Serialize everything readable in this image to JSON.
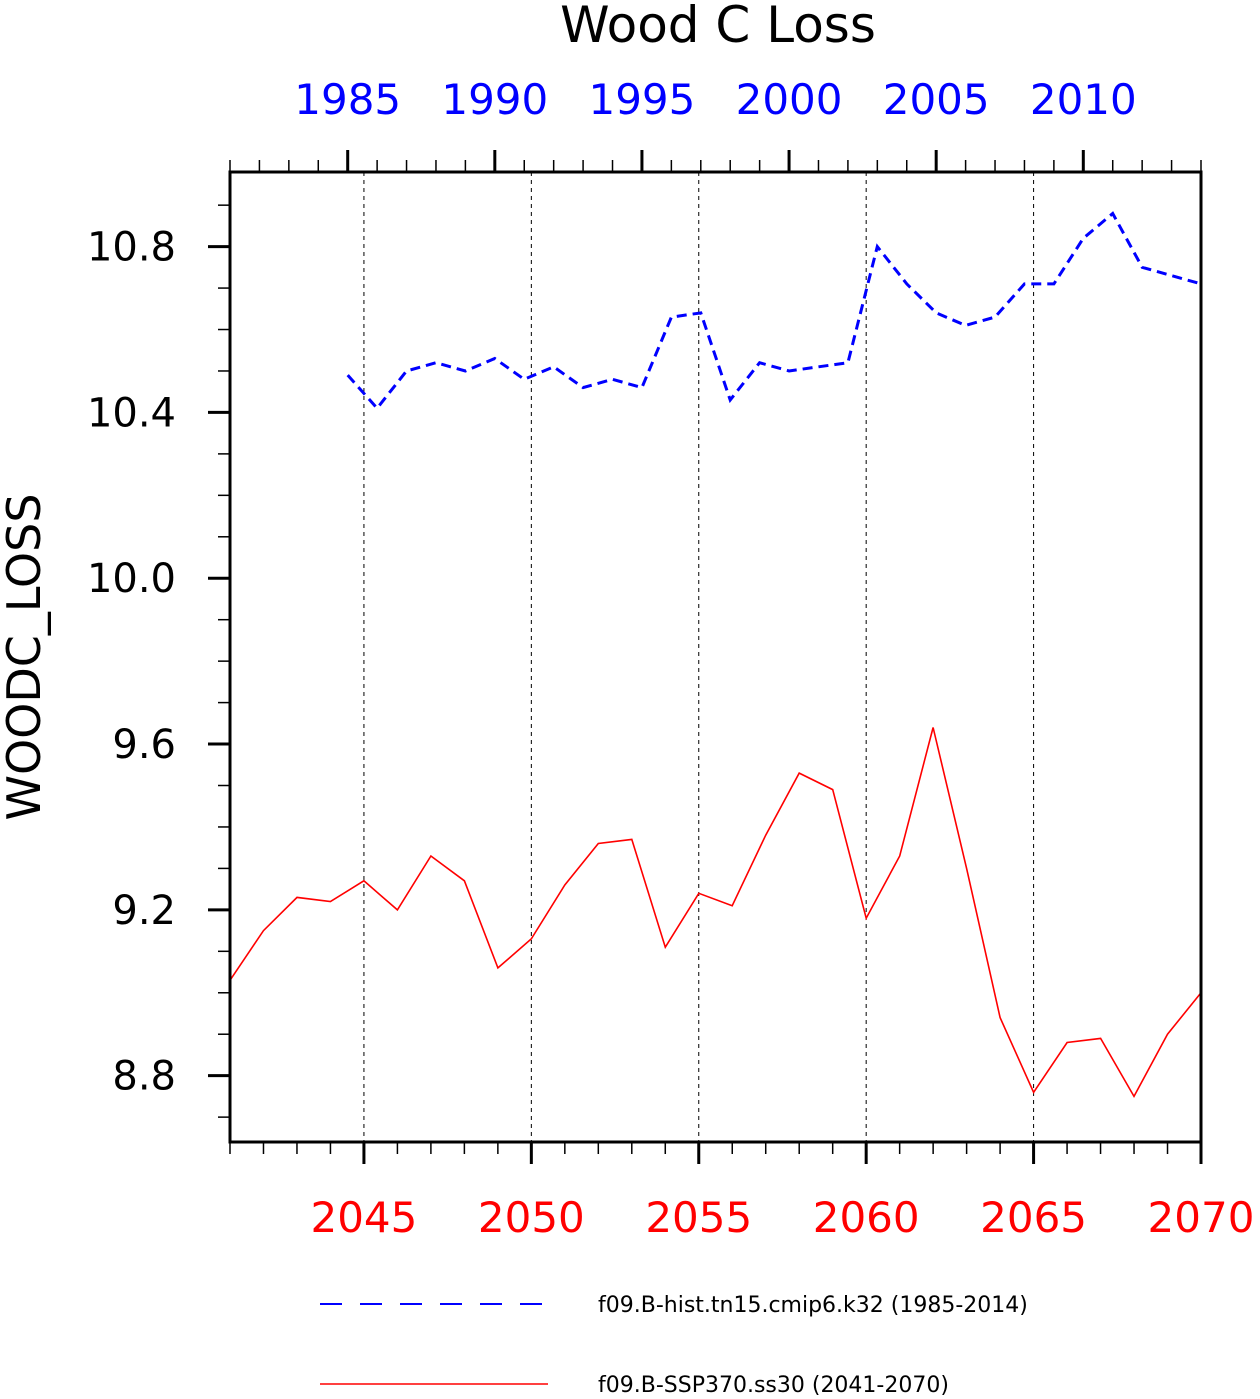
{
  "chart_data": {
    "type": "line",
    "title": "Wood C Loss",
    "ylabel": "WOODC_LOSS",
    "ylim": [
      8.64,
      10.98
    ],
    "yticks": [
      "8.8",
      "9.2",
      "9.6",
      "10.0",
      "10.4",
      "10.8"
    ],
    "grid": "vertical dashed lines at major bottom-axis ticks",
    "top_axis": {
      "color": "#0000ff",
      "range": [
        1981,
        2014
      ],
      "ticks": [
        "1985",
        "1990",
        "1995",
        "2000",
        "2005",
        "2010"
      ]
    },
    "bottom_axis": {
      "color": "#ff0000",
      "range": [
        2041,
        2070
      ],
      "ticks": [
        "2045",
        "2050",
        "2055",
        "2060",
        "2065",
        "2070"
      ]
    },
    "series": [
      {
        "name": "f09.B-hist.tn15.cmip6.k32 (1985-2014)",
        "color": "#0000ff",
        "style": "dashed",
        "x": [
          1985,
          1986,
          1987,
          1988,
          1989,
          1990,
          1991,
          1992,
          1993,
          1994,
          1995,
          1996,
          1997,
          1998,
          1999,
          2000,
          2001,
          2002,
          2003,
          2004,
          2005,
          2006,
          2007,
          2008,
          2009,
          2010,
          2011,
          2012,
          2013,
          2014
        ],
        "values": [
          10.49,
          10.41,
          10.5,
          10.52,
          10.5,
          10.53,
          10.48,
          10.51,
          10.46,
          10.48,
          10.46,
          10.63,
          10.64,
          10.43,
          10.52,
          10.5,
          10.51,
          10.52,
          10.8,
          10.71,
          10.64,
          10.61,
          10.63,
          10.71,
          10.71,
          10.82,
          10.88,
          10.75,
          10.73,
          10.71
        ]
      },
      {
        "name": "f09.B-SSP370.ss30 (2041-2070)",
        "color": "#ff0000",
        "style": "solid",
        "x": [
          2041,
          2042,
          2043,
          2044,
          2045,
          2046,
          2047,
          2048,
          2049,
          2050,
          2051,
          2052,
          2053,
          2054,
          2055,
          2056,
          2057,
          2058,
          2059,
          2060,
          2061,
          2062,
          2063,
          2064,
          2065,
          2066,
          2067,
          2068,
          2069,
          2070
        ],
        "values": [
          9.03,
          9.15,
          9.23,
          9.22,
          9.27,
          9.2,
          9.33,
          9.27,
          9.06,
          9.13,
          9.26,
          9.36,
          9.37,
          9.11,
          9.24,
          9.21,
          9.38,
          9.53,
          9.49,
          9.18,
          9.33,
          9.64,
          9.3,
          8.94,
          8.76,
          8.88,
          8.89,
          8.75,
          8.9,
          9.0
        ]
      }
    ],
    "legend": {
      "placement": "bottom",
      "entries": [
        "f09.B-hist.tn15.cmip6.k32 (1985-2014)",
        "f09.B-SSP370.ss30 (2041-2070)"
      ]
    }
  }
}
